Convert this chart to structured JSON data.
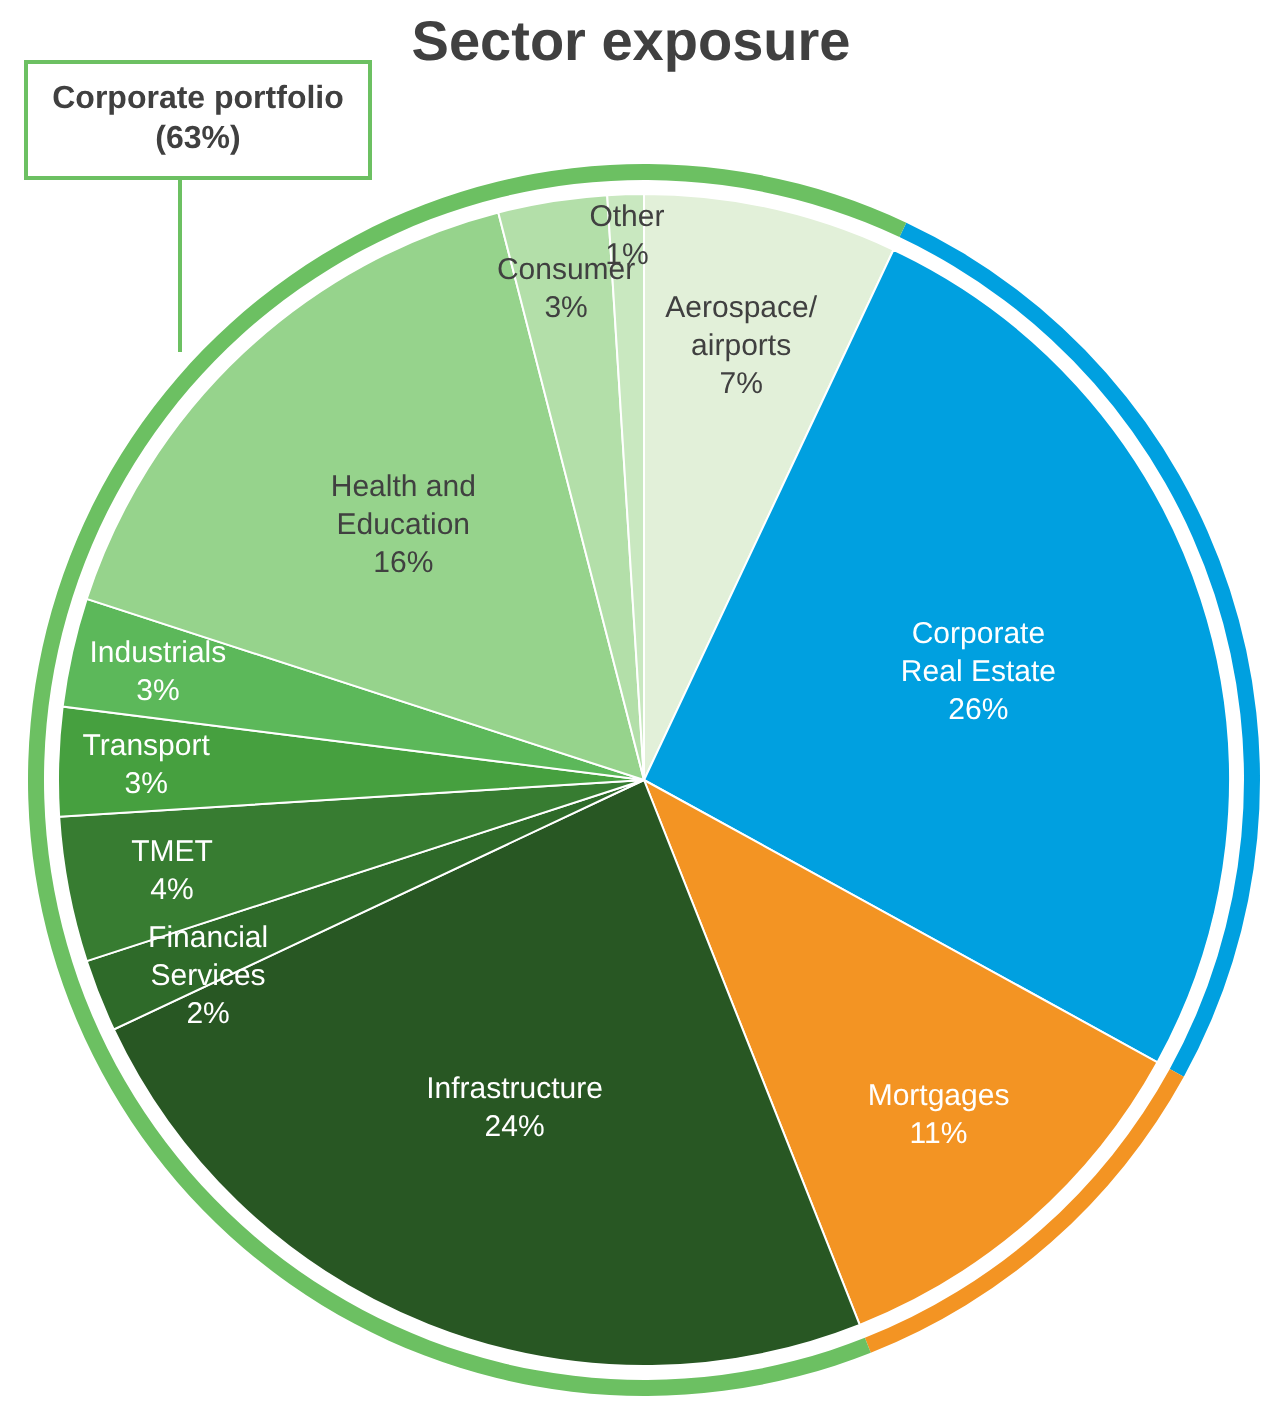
{
  "chart_data": [
    {
      "type": "pie",
      "title": "Sector exposure",
      "categories": [
        "Aerospace/airports",
        "Corporate Real Estate",
        "Mortgages",
        "Infrastructure",
        "Financial Services",
        "TMET",
        "Transport",
        "Industrials",
        "Health and Education",
        "Consumer",
        "Other"
      ],
      "values": [
        7,
        26,
        11,
        24,
        2,
        4,
        3,
        3,
        16,
        3,
        1
      ],
      "value_labels": [
        "7%",
        "26%",
        "11%",
        "24%",
        "2%",
        "4%",
        "3%",
        "3%",
        "16%",
        "3%",
        "1%"
      ],
      "colors": [
        "#e2f0d9",
        "#00a0e0",
        "#f39423",
        "#285723",
        "#2e6a29",
        "#377c31",
        "#46a03f",
        "#5cb85a",
        "#96d38c",
        "#b3dfa9",
        "#c9e8c0"
      ]
    },
    {
      "type": "donut",
      "categories": [
        null,
        null,
        "Corporate portfolio (63%)"
      ],
      "values": [
        26,
        11,
        63
      ],
      "colors": [
        "#00a0e0",
        "#f39423",
        "#6cc062"
      ]
    }
  ]
}
